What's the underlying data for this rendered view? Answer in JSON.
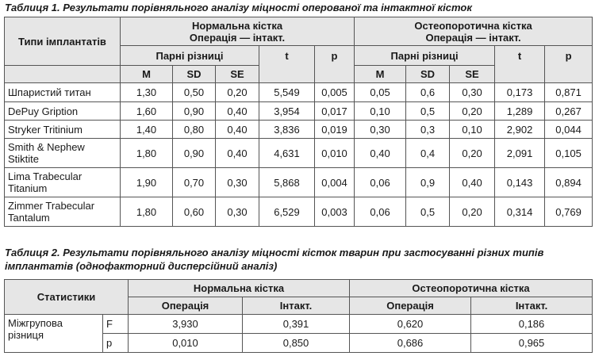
{
  "table1": {
    "caption": "Таблиця 1. Результати порівняльного аналізу міцності оперованої та інтактної кісток",
    "type_header": "Типи імплантатів",
    "group_normal": "Нормальна кістка\nОперація — інтакт.",
    "group_osteo": "Остеопоротична кістка\nОперація — інтакт.",
    "paired_diff": "Парні різниці",
    "t_label": "t",
    "p_label": "p",
    "m_label": "M",
    "sd_label": "SD",
    "se_label": "SE",
    "rows": [
      {
        "name": "Шпаристий титан",
        "cells": [
          "1,30",
          "0,50",
          "0,20",
          "5,549",
          "0,005",
          "0,05",
          "0,6",
          "0,30",
          "0,173",
          "0,871"
        ]
      },
      {
        "name": "DePuy Gription",
        "cells": [
          "1,60",
          "0,90",
          "0,40",
          "3,954",
          "0,017",
          "0,10",
          "0,5",
          "0,20",
          "1,289",
          "0,267"
        ]
      },
      {
        "name": "Stryker Tritinium",
        "cells": [
          "1,40",
          "0,80",
          "0,40",
          "3,836",
          "0,019",
          "0,30",
          "0,3",
          "0,10",
          "2,902",
          "0,044"
        ]
      },
      {
        "name": "Smith & Nephew Stiktite",
        "cells": [
          "1,80",
          "0,90",
          "0,40",
          "4,631",
          "0,010",
          "0,40",
          "0,4",
          "0,20",
          "2,091",
          "0,105"
        ]
      },
      {
        "name": "Lima Trabecular Titanium",
        "cells": [
          "1,90",
          "0,70",
          "0,30",
          "5,868",
          "0,004",
          "0,06",
          "0,9",
          "0,40",
          "0,143",
          "0,894"
        ]
      },
      {
        "name": "Zimmer Trabecular Tantalum",
        "cells": [
          "1,80",
          "0,60",
          "0,30",
          "6,529",
          "0,003",
          "0,06",
          "0,5",
          "0,20",
          "0,314",
          "0,769"
        ]
      }
    ]
  },
  "table2": {
    "caption": "Таблиця 2. Результати порівняльного аналізу міцності кісток тварин при застосуванні різних типів імплантатів (однофакторний дисперсійний аналіз)",
    "stats_header": "Статистики",
    "normal_header": "Нормальна кістка",
    "osteo_header": "Остеопоротична кістка",
    "operation": "Операція",
    "intact": "Інтакт.",
    "row_label": "Міжгрупова різниця",
    "rows": [
      {
        "stat": "F",
        "cells": [
          "3,930",
          "0,391",
          "0,620",
          "0,186"
        ]
      },
      {
        "stat": "p",
        "cells": [
          "0,010",
          "0,850",
          "0,686",
          "0,965"
        ]
      }
    ]
  }
}
